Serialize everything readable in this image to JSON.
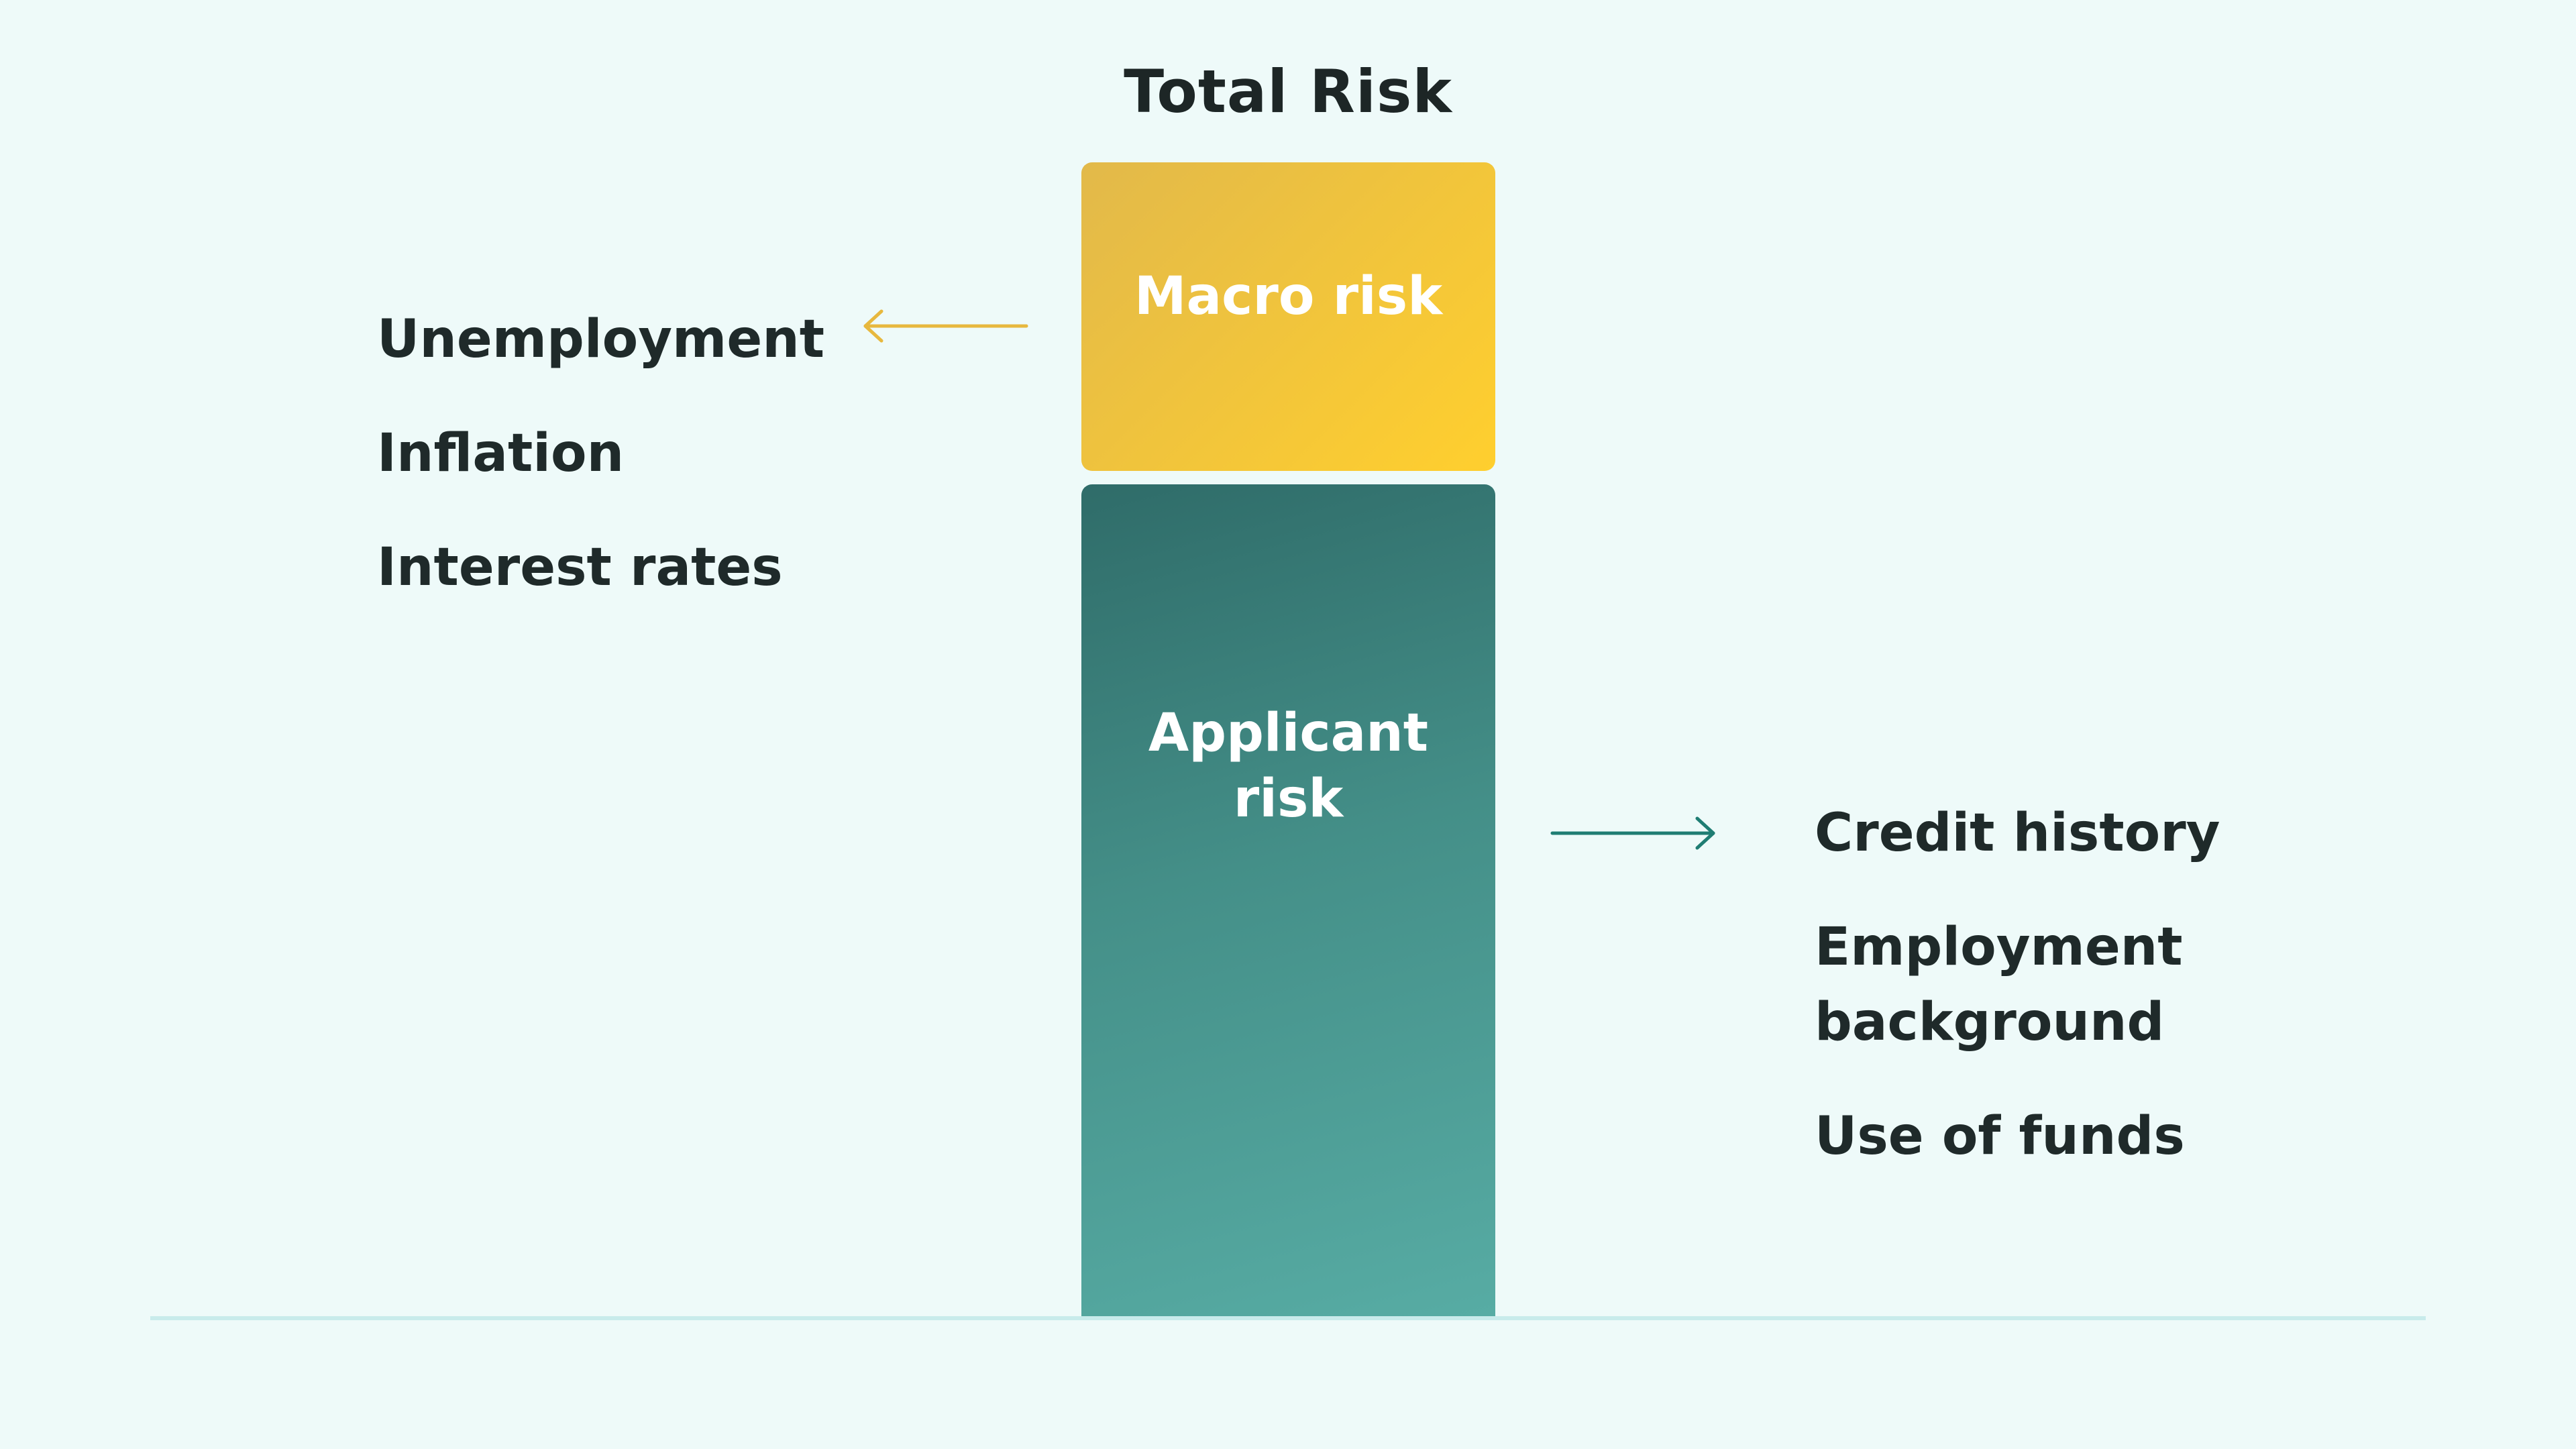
{
  "diagram": {
    "title": "Total Risk",
    "blocks": {
      "macro": {
        "label": "Macro risk",
        "color_start": "#e2b94a",
        "color_end": "#ffcf2e"
      },
      "applicant": {
        "label": "Applicant risk",
        "color_start": "#2f6c69",
        "color_end": "#57aca4"
      }
    },
    "macro_factors": [
      "Unemployment",
      "Inflation",
      "Interest rates"
    ],
    "applicant_factors": [
      "Credit history",
      "Employment background",
      "Use of funds"
    ],
    "arrows": {
      "macro_color": "#e7b83e",
      "applicant_color": "#1f7d73"
    }
  }
}
